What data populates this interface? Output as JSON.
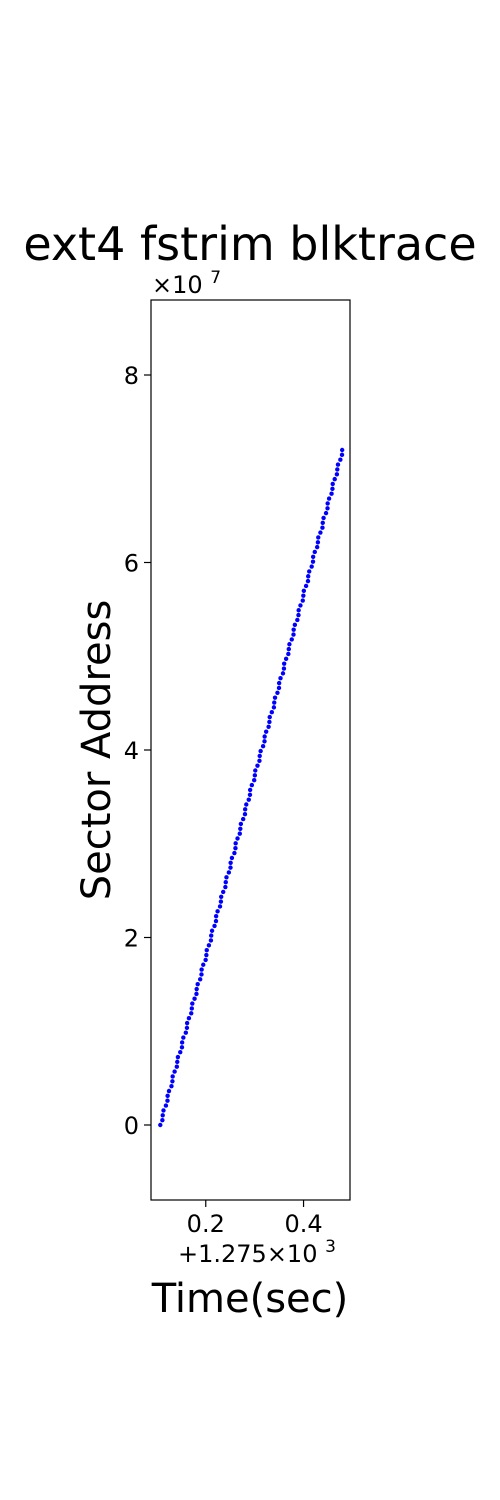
{
  "chart_data": {
    "type": "scatter",
    "title": "ext4 fstrim blktrace",
    "xlabel": "Time(sec)",
    "ylabel": "Sector Address",
    "x_offset_label": "+1.275×10",
    "x_offset_exponent": "3",
    "y_scale_label": "×10",
    "y_scale_exponent": "7",
    "xlim": [
      1275.088,
      1275.495
    ],
    "ylim": [
      -8000000,
      88000000
    ],
    "xticks": [
      {
        "value": 1275.2,
        "label": "0.2"
      },
      {
        "value": 1275.4,
        "label": "0.4"
      }
    ],
    "yticks": [
      {
        "value": 0,
        "label": "0"
      },
      {
        "value": 20000000,
        "label": "2"
      },
      {
        "value": 40000000,
        "label": "4"
      },
      {
        "value": 60000000,
        "label": "6"
      },
      {
        "value": 80000000,
        "label": "8"
      }
    ],
    "grid": false,
    "series": [
      {
        "color": "#0000ff",
        "x_start": 1275.107,
        "x_end": 1275.48,
        "y_start": 0,
        "y_end": 72000000,
        "points": 140
      }
    ]
  }
}
